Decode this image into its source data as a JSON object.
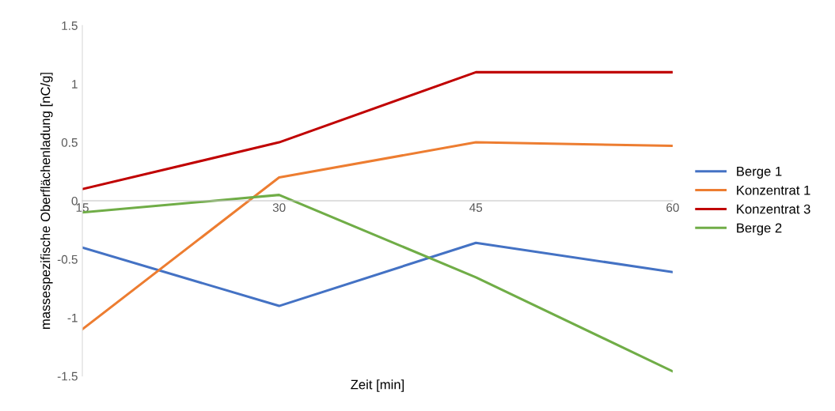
{
  "chart_data": {
    "type": "line",
    "xlabel": "Zeit [min]",
    "ylabel": "massespezifische Oberflächenladung [nC/g]",
    "x": [
      15,
      30,
      45,
      60
    ],
    "xlim": [
      15,
      60
    ],
    "xticks": [
      15,
      30,
      45,
      60
    ],
    "ylim": [
      -1.5,
      1.5
    ],
    "yticks": [
      {
        "value": -1.5,
        "label": "-1.5"
      },
      {
        "value": -1,
        "label": "-1"
      },
      {
        "value": -0.5,
        "label": "-0.5"
      },
      0,
      0.5,
      1,
      1.5
    ],
    "grid": false,
    "legend": "right",
    "marker": "none",
    "line_style": "solid",
    "series": [
      {
        "name": "Berge 1",
        "color": "#4472c4",
        "values": [
          -0.4,
          -0.9,
          -0.36,
          -0.61
        ]
      },
      {
        "name": "Konzentrat 1",
        "color": "#ed7d31",
        "values": [
          -1.1,
          0.2,
          0.5,
          0.47
        ]
      },
      {
        "name": "Konzentrat 3",
        "color": "#c00000",
        "values": [
          0.1,
          0.5,
          1.1,
          1.1
        ]
      },
      {
        "name": "Berge 2",
        "color": "#70ad47",
        "values": [
          -0.1,
          0.05,
          -0.655,
          -1.46
        ]
      }
    ]
  }
}
